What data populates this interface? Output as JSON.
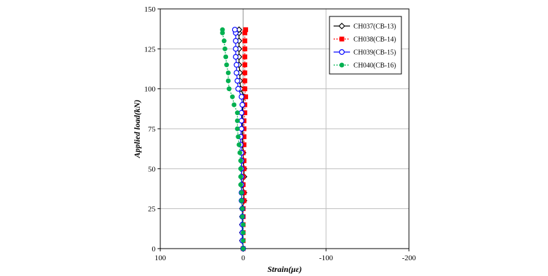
{
  "chart_data": {
    "type": "line",
    "xlabel": "Strain(με)",
    "ylabel": "Applied load(kN)",
    "xlim": [
      100,
      -200
    ],
    "ylim": [
      0,
      150
    ],
    "x_ticks": [
      100,
      0,
      -100,
      -200
    ],
    "y_ticks": [
      0,
      25,
      50,
      75,
      100,
      125,
      150
    ],
    "grid": true,
    "legend_position": "top-right",
    "series": [
      {
        "name": "CH037(CB-13)",
        "color": "#000000",
        "marker": "diamond-open",
        "line": "solid",
        "points": [
          [
            0,
            0
          ],
          [
            1,
            5
          ],
          [
            1,
            10
          ],
          [
            1,
            15
          ],
          [
            1,
            20
          ],
          [
            1,
            25
          ],
          [
            -1,
            30
          ],
          [
            -1,
            35
          ],
          [
            1,
            40
          ],
          [
            -1,
            45
          ],
          [
            -1,
            50
          ],
          [
            0,
            55
          ],
          [
            0,
            60
          ],
          [
            1,
            65
          ],
          [
            1,
            70
          ],
          [
            1,
            75
          ],
          [
            1,
            80
          ],
          [
            1,
            85
          ],
          [
            0,
            90
          ],
          [
            -1,
            95
          ],
          [
            3,
            100
          ],
          [
            4,
            105
          ],
          [
            4,
            110
          ],
          [
            5,
            115
          ],
          [
            5,
            120
          ],
          [
            5,
            125
          ],
          [
            5,
            130
          ],
          [
            5,
            135
          ],
          [
            5,
            137
          ]
        ]
      },
      {
        "name": "CH038(CB-14)",
        "color": "#ff0000",
        "marker": "square",
        "line": "dotted",
        "points": [
          [
            0,
            0
          ],
          [
            0,
            5
          ],
          [
            0,
            10
          ],
          [
            0,
            15
          ],
          [
            0,
            20
          ],
          [
            0,
            25
          ],
          [
            -1,
            30
          ],
          [
            -1,
            35
          ],
          [
            0,
            40
          ],
          [
            0,
            45
          ],
          [
            -1,
            50
          ],
          [
            -1,
            55
          ],
          [
            0,
            60
          ],
          [
            -1,
            65
          ],
          [
            -1,
            70
          ],
          [
            -1,
            75
          ],
          [
            -1,
            80
          ],
          [
            -2,
            85
          ],
          [
            -2,
            90
          ],
          [
            -3,
            95
          ],
          [
            -2,
            100
          ],
          [
            -2,
            105
          ],
          [
            -2,
            110
          ],
          [
            -2,
            115
          ],
          [
            -2,
            120
          ],
          [
            -2,
            125
          ],
          [
            -2,
            130
          ],
          [
            -2,
            135
          ],
          [
            -3,
            137
          ]
        ]
      },
      {
        "name": "CH039(CB-15)",
        "color": "#0000ff",
        "marker": "circle-open",
        "line": "solid",
        "points": [
          [
            0,
            0
          ],
          [
            1,
            5
          ],
          [
            1,
            10
          ],
          [
            1,
            15
          ],
          [
            1,
            20
          ],
          [
            1,
            25
          ],
          [
            2,
            30
          ],
          [
            2,
            35
          ],
          [
            2,
            40
          ],
          [
            2,
            45
          ],
          [
            2,
            50
          ],
          [
            2,
            55
          ],
          [
            2,
            60
          ],
          [
            3,
            65
          ],
          [
            3,
            70
          ],
          [
            2,
            75
          ],
          [
            2,
            80
          ],
          [
            2,
            85
          ],
          [
            1,
            90
          ],
          [
            2,
            95
          ],
          [
            6,
            100
          ],
          [
            7,
            105
          ],
          [
            8,
            110
          ],
          [
            8,
            115
          ],
          [
            9,
            120
          ],
          [
            9,
            125
          ],
          [
            9,
            130
          ],
          [
            9,
            135
          ],
          [
            10,
            137
          ]
        ]
      },
      {
        "name": "CH040(CB-16)",
        "color": "#00b050",
        "marker": "circle",
        "line": "dotted",
        "points": [
          [
            0,
            0
          ],
          [
            0,
            5
          ],
          [
            0,
            10
          ],
          [
            0,
            15
          ],
          [
            1,
            20
          ],
          [
            1,
            25
          ],
          [
            2,
            30
          ],
          [
            2,
            35
          ],
          [
            3,
            40
          ],
          [
            3,
            45
          ],
          [
            3,
            50
          ],
          [
            3,
            55
          ],
          [
            4,
            60
          ],
          [
            5,
            65
          ],
          [
            6,
            70
          ],
          [
            7,
            75
          ],
          [
            7,
            80
          ],
          [
            7,
            85
          ],
          [
            11,
            90
          ],
          [
            13,
            95
          ],
          [
            17,
            100
          ],
          [
            18,
            105
          ],
          [
            18,
            110
          ],
          [
            20,
            115
          ],
          [
            21,
            120
          ],
          [
            22,
            125
          ],
          [
            23,
            130
          ],
          [
            25,
            135
          ],
          [
            25,
            137
          ]
        ]
      }
    ]
  }
}
